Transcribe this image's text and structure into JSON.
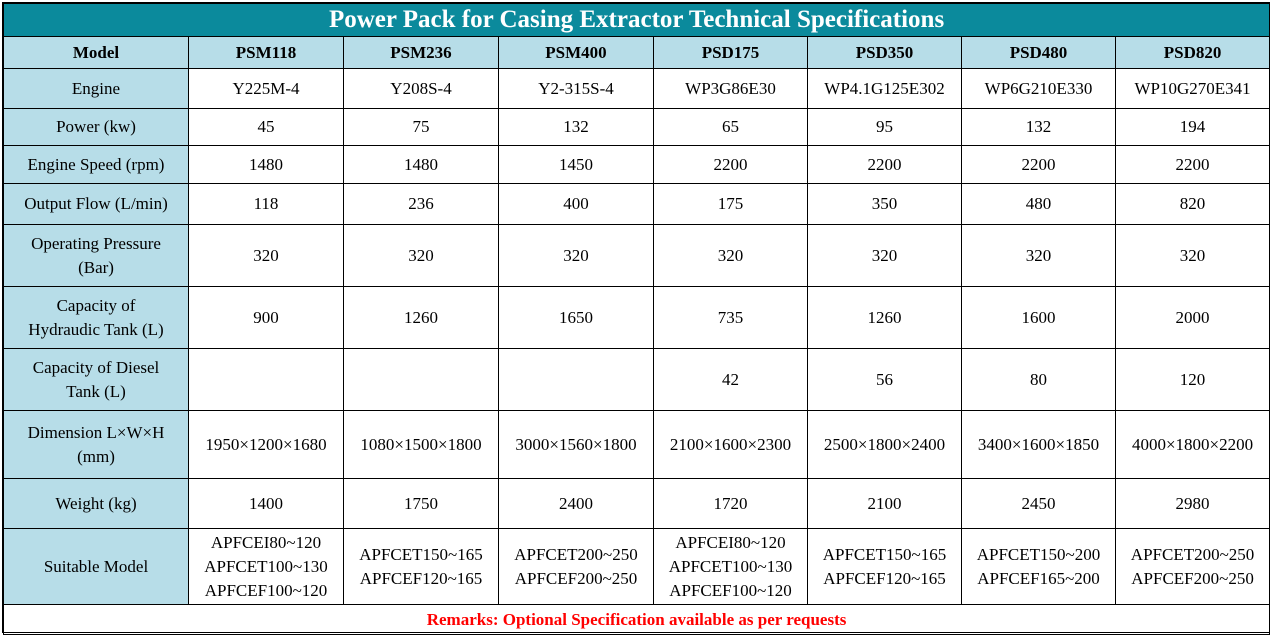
{
  "title": "Power Pack for Casing Extractor Technical Specifications",
  "header": {
    "label": "Model",
    "models": [
      "PSM118",
      "PSM236",
      "PSM400",
      "PSD175",
      "PSD350",
      "PSD480",
      "PSD820"
    ]
  },
  "rows": [
    {
      "label": "Engine",
      "values": [
        "Y225M-4",
        "Y208S-4",
        "Y2-315S-4",
        "WP3G86E30",
        "WP4.1G125E302",
        "WP6G210E330",
        "WP10G270E341"
      ]
    },
    {
      "label": "Power (kw)",
      "values": [
        "45",
        "75",
        "132",
        "65",
        "95",
        "132",
        "194"
      ]
    },
    {
      "label": "Engine Speed (rpm)",
      "values": [
        "1480",
        "1480",
        "1450",
        "2200",
        "2200",
        "2200",
        "2200"
      ]
    },
    {
      "label": "Output Flow (L/min)",
      "values": [
        "118",
        "236",
        "400",
        "175",
        "350",
        "480",
        "820"
      ]
    },
    {
      "label": "Operating Pressure\n(Bar)",
      "values": [
        "320",
        "320",
        "320",
        "320",
        "320",
        "320",
        "320"
      ]
    },
    {
      "label": "Capacity of\nHydraudic Tank (L)",
      "values": [
        "900",
        "1260",
        "1650",
        "735",
        "1260",
        "1600",
        "2000"
      ]
    },
    {
      "label": "Capacity of Diesel\nTank (L)",
      "values": [
        "",
        "",
        "",
        "42",
        "56",
        "80",
        "120"
      ]
    },
    {
      "label": "Dimension L×W×H\n(mm)",
      "values": [
        "1950×1200×1680",
        "1080×1500×1800",
        "3000×1560×1800",
        "2100×1600×2300",
        "2500×1800×2400",
        "3400×1600×1850",
        "4000×1800×2200"
      ]
    },
    {
      "label": "Weight (kg)",
      "values": [
        "1400",
        "1750",
        "2400",
        "1720",
        "2100",
        "2450",
        "2980"
      ]
    }
  ],
  "suitable": {
    "label": "Suitable Model",
    "values": [
      "APFCEI80~120\nAPFCET100~130\nAPFCEF100~120",
      "APFCET150~165\nAPFCEF120~165",
      "APFCET200~250\nAPFCEF200~250",
      "APFCEI80~120\nAPFCET100~130\nAPFCEF100~120",
      "APFCET150~165\nAPFCEF120~165",
      "APFCET150~200\nAPFCEF165~200",
      "APFCET200~250\nAPFCEF200~250"
    ]
  },
  "remarks": "Remarks: Optional Specification available as per requests",
  "colors": {
    "title_bg": "#0b8a9c",
    "header_bg": "#b7dde8",
    "remarks_text": "#ff0000"
  }
}
